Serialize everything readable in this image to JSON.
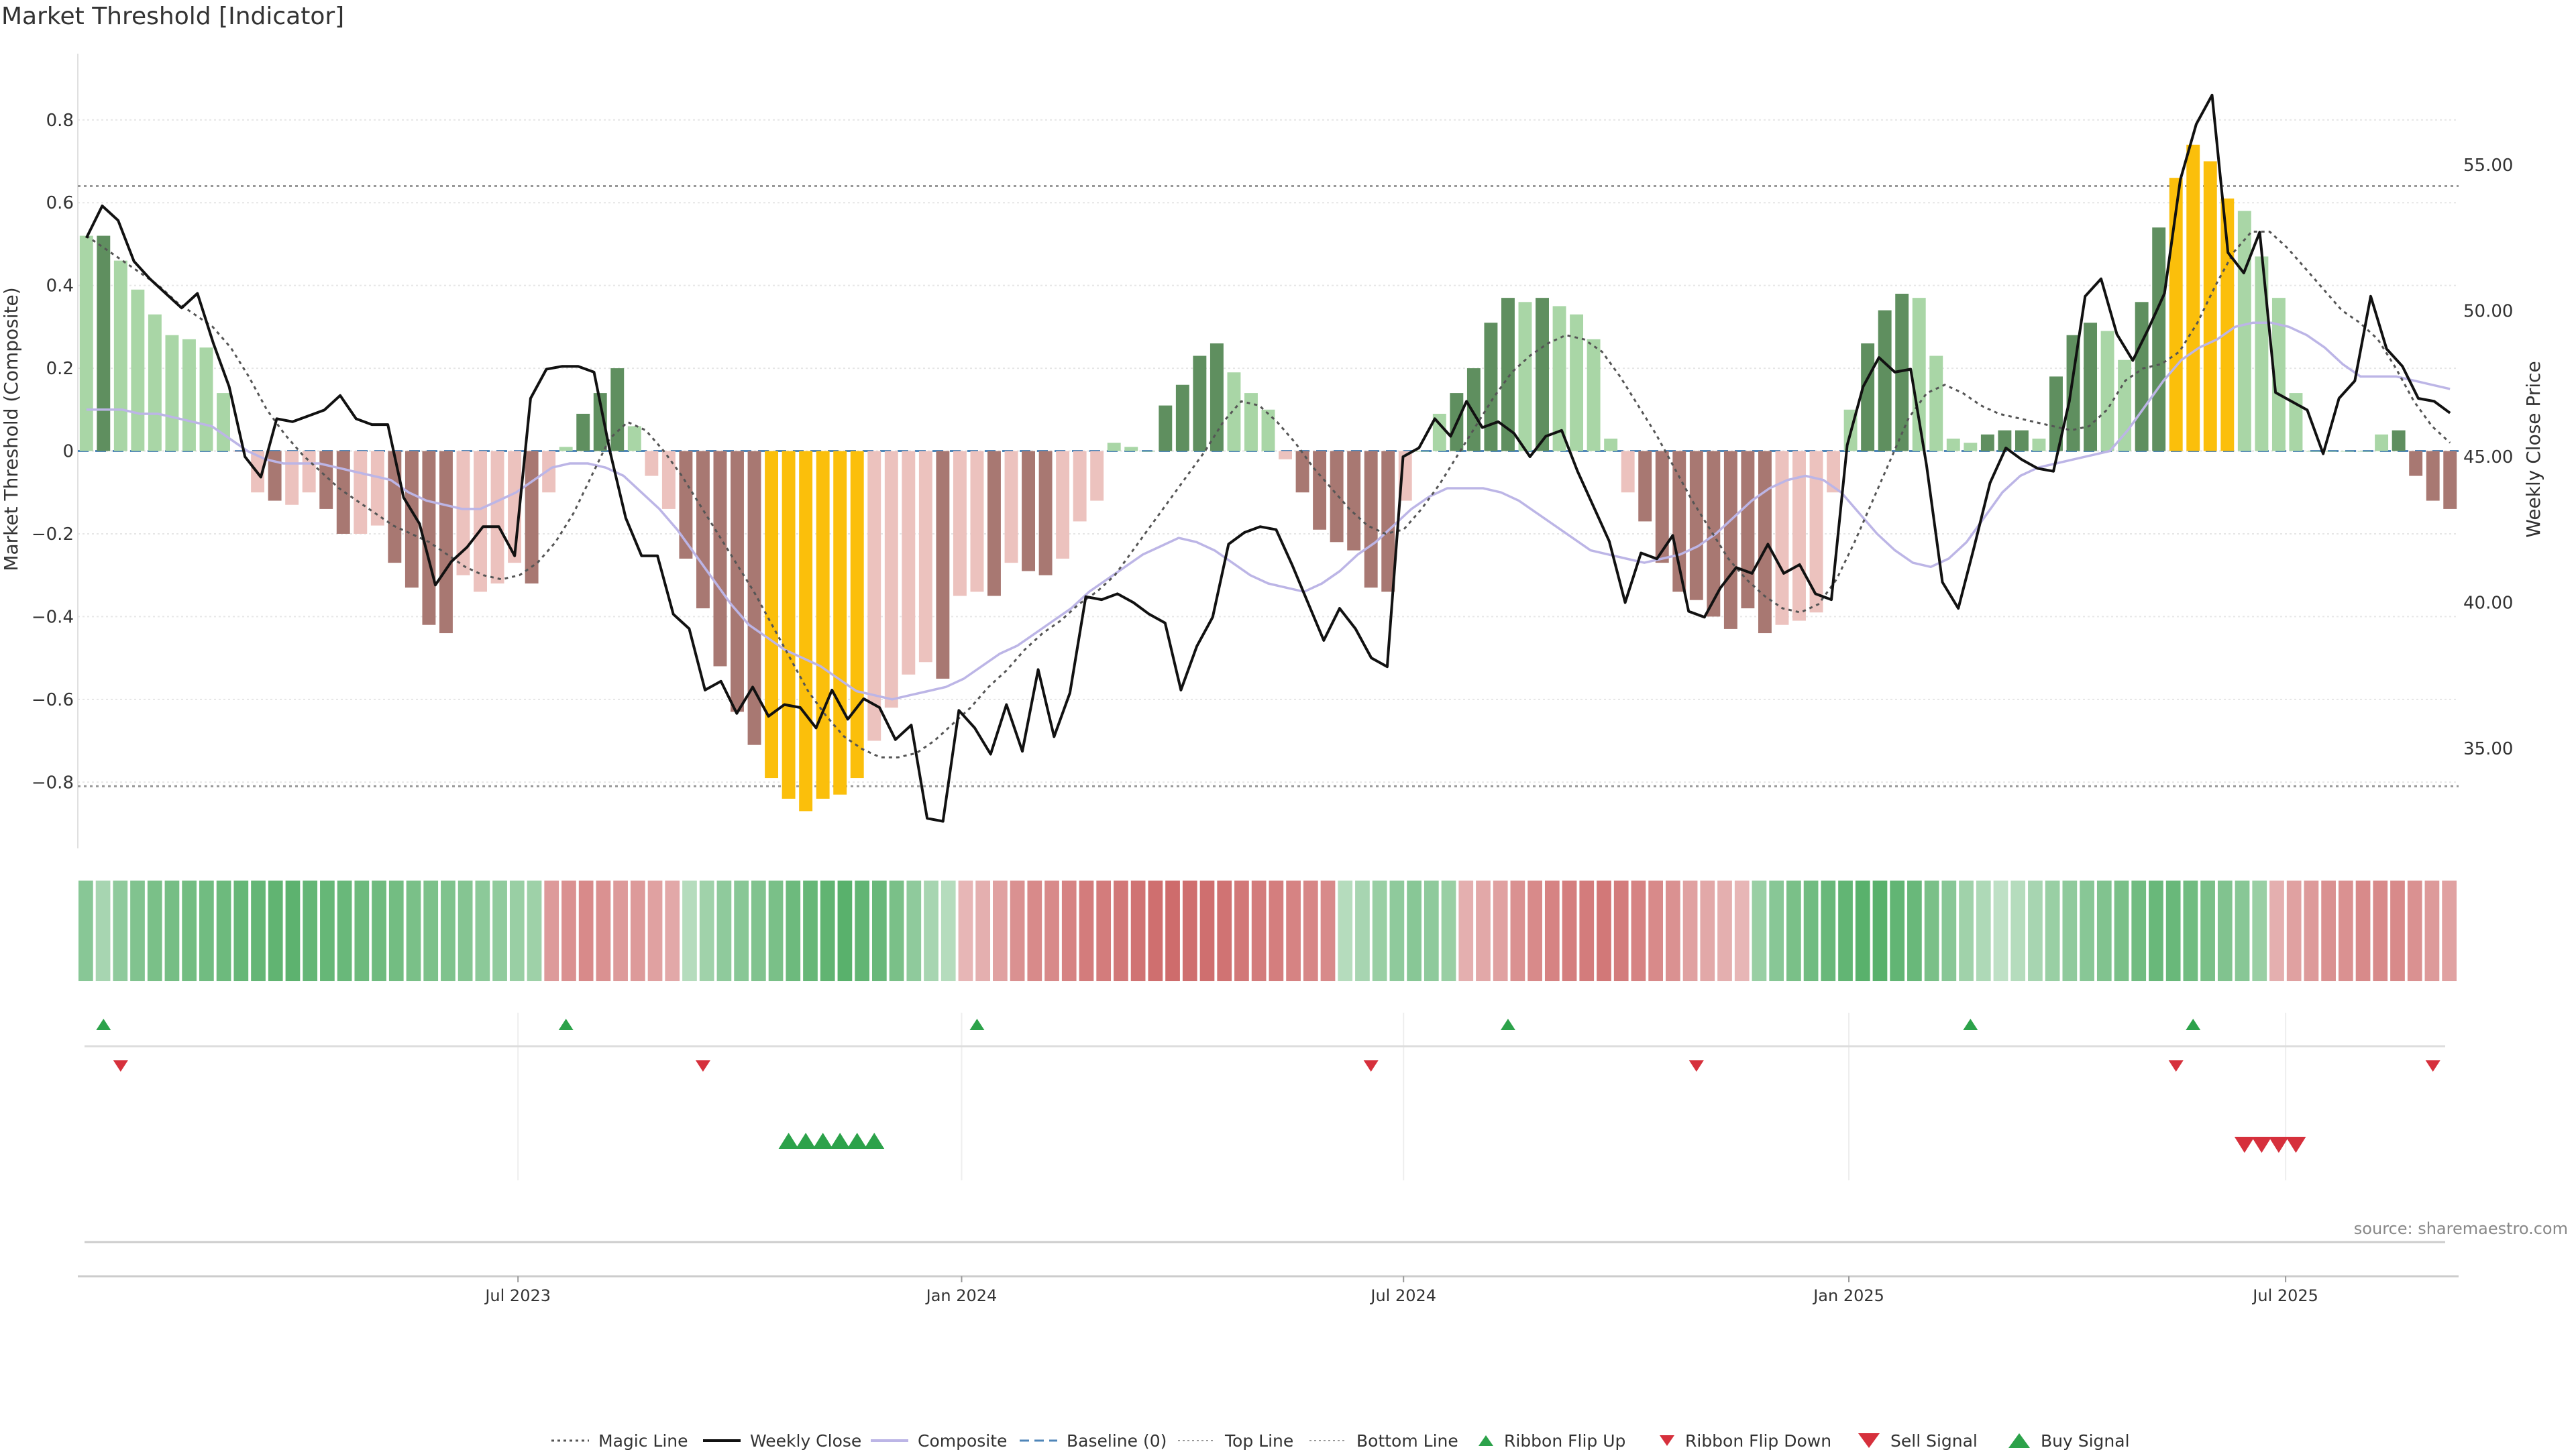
{
  "title": "Market Threshold [Indicator]",
  "source": "source: sharemaestro.com",
  "colors": {
    "bar_pos_strong": "#5f8f5f",
    "bar_pos_weak": "#a9d6a6",
    "bar_neg_strong": "#a87872",
    "bar_neg_weak": "#ecc2be",
    "bar_extreme": "#fbbf0b",
    "weekly_close": "#111111",
    "composite": "#bcb5e6",
    "magic": "#555555",
    "baseline": "#4f86b8",
    "threshold": "#999999",
    "buy": "#2ca24a",
    "sell": "#d6303c"
  },
  "legend": [
    {
      "label": "Magic Line",
      "kind": "dotted-line"
    },
    {
      "label": "Weekly Close",
      "kind": "solid-line"
    },
    {
      "label": "Composite",
      "kind": "composite-line"
    },
    {
      "label": "Baseline (0)",
      "kind": "dashed-line"
    },
    {
      "label": "Top Line",
      "kind": "fine-dotted-line"
    },
    {
      "label": "Bottom Line",
      "kind": "fine-dotted-line"
    },
    {
      "label": "Ribbon Flip Up",
      "kind": "small-up-triangle"
    },
    {
      "label": "Ribbon Flip Down",
      "kind": "small-down-triangle"
    },
    {
      "label": "Sell Signal",
      "kind": "big-down-triangle"
    },
    {
      "label": "Buy Signal",
      "kind": "big-up-triangle"
    }
  ],
  "chart_data": {
    "type": "bar",
    "title": "Market Threshold [Indicator]",
    "ylabel": "Market Threshold (Composite)",
    "y2label": "Weekly Close Price",
    "ylim": [
      -0.96,
      0.96
    ],
    "y2lim": [
      31.57,
      58.82
    ],
    "yticks": [
      -0.8,
      -0.6,
      -0.4,
      -0.2,
      0,
      0.2,
      0.4,
      0.6,
      0.8
    ],
    "ytick_labels": [
      "−0.8",
      "−0.6",
      "−0.4",
      "−0.2",
      "0",
      "0.2",
      "0.4",
      "0.6",
      "0.8"
    ],
    "y2ticks": [
      35,
      40,
      45,
      50,
      55
    ],
    "y2tick_labels": [
      "35.00",
      "40.00",
      "45.00",
      "50.00",
      "55.00"
    ],
    "xticks": [
      25.7,
      51.6,
      77.4,
      103.4,
      128.9
    ],
    "xtick_labels": [
      "Jul 2023",
      "Jan 2024",
      "Jul 2024",
      "Jan 2025",
      "Jul 2025"
    ],
    "top_line": 0.64,
    "bottom_line": -0.81,
    "baseline": 0,
    "composite": [
      0.52,
      0.52,
      0.46,
      0.39,
      0.33,
      0.28,
      0.27,
      0.25,
      0.14,
      0.0,
      -0.1,
      -0.12,
      -0.13,
      -0.1,
      -0.14,
      -0.2,
      -0.2,
      -0.18,
      -0.27,
      -0.33,
      -0.42,
      -0.44,
      -0.3,
      -0.34,
      -0.32,
      -0.27,
      -0.32,
      -0.1,
      0.01,
      0.09,
      0.14,
      0.2,
      0.06,
      -0.06,
      -0.14,
      -0.26,
      -0.38,
      -0.52,
      -0.63,
      -0.71,
      -0.79,
      -0.84,
      -0.87,
      -0.84,
      -0.83,
      -0.79,
      -0.7,
      -0.62,
      -0.54,
      -0.51,
      -0.55,
      -0.35,
      -0.34,
      -0.35,
      -0.27,
      -0.29,
      -0.3,
      -0.26,
      -0.17,
      -0.12,
      0.02,
      0.01,
      0.0,
      0.11,
      0.16,
      0.23,
      0.26,
      0.19,
      0.14,
      0.1,
      -0.02,
      -0.1,
      -0.19,
      -0.22,
      -0.24,
      -0.33,
      -0.34,
      -0.12,
      0.0,
      0.09,
      0.14,
      0.2,
      0.31,
      0.37,
      0.36,
      0.37,
      0.35,
      0.33,
      0.27,
      0.03,
      -0.1,
      -0.17,
      -0.27,
      -0.34,
      -0.36,
      -0.4,
      -0.43,
      -0.38,
      -0.44,
      -0.42,
      -0.41,
      -0.39,
      -0.1,
      0.1,
      0.26,
      0.34,
      0.38,
      0.37,
      0.23,
      0.03,
      0.02,
      0.04,
      0.05,
      0.05,
      0.03,
      0.18,
      0.28,
      0.31,
      0.29,
      0.22,
      0.36,
      0.54,
      0.66,
      0.74,
      0.7,
      0.61,
      0.58,
      0.47,
      0.37,
      0.14,
      0.0,
      0.0,
      0.0,
      0.0,
      0.04,
      0.05,
      -0.06,
      -0.12,
      -0.14
    ],
    "bar_color_class": [
      "pw",
      "ps",
      "pw",
      "pw",
      "pw",
      "pw",
      "pw",
      "pw",
      "pw",
      "nw",
      "nw",
      "ns",
      "nw",
      "nw",
      "ns",
      "ns",
      "nw",
      "nw",
      "ns",
      "ns",
      "ns",
      "ns",
      "nw",
      "nw",
      "nw",
      "nw",
      "ns",
      "nw",
      "pw",
      "ps",
      "ps",
      "ps",
      "pw",
      "nw",
      "nw",
      "ns",
      "ns",
      "ns",
      "ns",
      "ns",
      "ex",
      "ex",
      "ex",
      "ex",
      "ex",
      "ex",
      "nw",
      "nw",
      "nw",
      "nw",
      "ns",
      "nw",
      "nw",
      "ns",
      "nw",
      "ns",
      "ns",
      "nw",
      "nw",
      "nw",
      "pw",
      "pw",
      "pw",
      "ps",
      "ps",
      "ps",
      "ps",
      "pw",
      "pw",
      "pw",
      "nw",
      "ns",
      "ns",
      "ns",
      "ns",
      "ns",
      "ns",
      "nw",
      "pw",
      "pw",
      "ps",
      "ps",
      "ps",
      "ps",
      "pw",
      "ps",
      "pw",
      "pw",
      "pw",
      "pw",
      "nw",
      "ns",
      "ns",
      "ns",
      "ns",
      "ns",
      "ns",
      "ns",
      "ns",
      "nw",
      "nw",
      "nw",
      "nw",
      "pw",
      "ps",
      "ps",
      "ps",
      "pw",
      "pw",
      "pw",
      "pw",
      "ps",
      "ps",
      "ps",
      "pw",
      "ps",
      "ps",
      "ps",
      "pw",
      "pw",
      "ps",
      "ps",
      "ex",
      "ex",
      "ex",
      "ex",
      "pw",
      "pw",
      "pw",
      "pw",
      "pw",
      "pw",
      "pw",
      "pw",
      "pw",
      "ps",
      "ns",
      "ns",
      "ns"
    ],
    "weekly_close": [
      52.5,
      53.6,
      53.1,
      51.7,
      51.1,
      50.6,
      50.1,
      50.6,
      48.9,
      47.4,
      45.0,
      44.3,
      46.3,
      46.2,
      46.4,
      46.6,
      47.1,
      46.3,
      46.1,
      46.1,
      43.6,
      42.7,
      40.6,
      41.4,
      41.9,
      42.6,
      42.6,
      41.6,
      47.0,
      48.0,
      48.1,
      48.1,
      47.9,
      45.2,
      42.9,
      41.6,
      41.6,
      39.6,
      39.1,
      37.0,
      37.3,
      36.2,
      37.1,
      36.1,
      36.5,
      36.4,
      35.7,
      37.0,
      36.0,
      36.7,
      36.4,
      35.3,
      35.8,
      32.6,
      32.5,
      36.3,
      35.7,
      34.8,
      36.5,
      34.9,
      37.7,
      35.4,
      36.9,
      40.2,
      40.1,
      40.3,
      40.0,
      39.6,
      39.3,
      37.0,
      38.5,
      39.5,
      42.0,
      42.4,
      42.6,
      42.5,
      41.3,
      40.0,
      38.7,
      39.8,
      39.1,
      38.1,
      37.8,
      45.0,
      45.3,
      46.3,
      45.7,
      46.9,
      46.0,
      46.2,
      45.8,
      45.0,
      45.7,
      45.9,
      44.5,
      43.3,
      42.1,
      40.0,
      41.7,
      41.5,
      42.3,
      39.7,
      39.5,
      40.5,
      41.2,
      41.0,
      42.0,
      41.0,
      41.3,
      40.3,
      40.1,
      45.4,
      47.4,
      48.4,
      47.9,
      48.0,
      44.7,
      40.7,
      39.8,
      41.9,
      44.1,
      45.3,
      44.9,
      44.6,
      44.5,
      46.9,
      50.5,
      51.1,
      49.2,
      48.3,
      49.4,
      50.6,
      54.5,
      56.4,
      57.4,
      52.0,
      51.3,
      52.7,
      47.2,
      46.9,
      46.6,
      45.1,
      47.0,
      47.6,
      50.5,
      48.7,
      48.1,
      47.0,
      46.9,
      46.5
    ],
    "composite_line": [
      0.1,
      0.1,
      0.1,
      0.09,
      0.09,
      0.08,
      0.07,
      0.06,
      0.03,
      0.0,
      -0.02,
      -0.03,
      -0.03,
      -0.03,
      -0.04,
      -0.05,
      -0.06,
      -0.07,
      -0.1,
      -0.12,
      -0.13,
      -0.14,
      -0.14,
      -0.12,
      -0.1,
      -0.07,
      -0.04,
      -0.03,
      -0.03,
      -0.04,
      -0.06,
      -0.1,
      -0.14,
      -0.19,
      -0.25,
      -0.31,
      -0.37,
      -0.42,
      -0.45,
      -0.48,
      -0.5,
      -0.52,
      -0.55,
      -0.58,
      -0.59,
      -0.6,
      -0.59,
      -0.58,
      -0.57,
      -0.55,
      -0.52,
      -0.49,
      -0.47,
      -0.44,
      -0.41,
      -0.38,
      -0.34,
      -0.31,
      -0.28,
      -0.25,
      -0.23,
      -0.21,
      -0.22,
      -0.24,
      -0.27,
      -0.3,
      -0.32,
      -0.33,
      -0.34,
      -0.32,
      -0.29,
      -0.25,
      -0.22,
      -0.18,
      -0.14,
      -0.11,
      -0.09,
      -0.09,
      -0.09,
      -0.1,
      -0.12,
      -0.15,
      -0.18,
      -0.21,
      -0.24,
      -0.25,
      -0.26,
      -0.27,
      -0.26,
      -0.25,
      -0.23,
      -0.2,
      -0.16,
      -0.12,
      -0.09,
      -0.07,
      -0.06,
      -0.07,
      -0.1,
      -0.15,
      -0.2,
      -0.24,
      -0.27,
      -0.28,
      -0.26,
      -0.22,
      -0.16,
      -0.1,
      -0.06,
      -0.04,
      -0.03,
      -0.02,
      -0.01,
      0.0,
      0.05,
      0.11,
      0.17,
      0.22,
      0.25,
      0.27,
      0.3,
      0.31,
      0.31,
      0.3,
      0.28,
      0.25,
      0.21,
      0.18,
      0.18,
      0.18,
      0.17,
      0.16,
      0.15
    ],
    "magic_line": [
      0.52,
      0.49,
      0.46,
      0.43,
      0.4,
      0.36,
      0.33,
      0.3,
      0.25,
      0.18,
      0.1,
      0.04,
      -0.01,
      -0.05,
      -0.09,
      -0.12,
      -0.15,
      -0.18,
      -0.2,
      -0.22,
      -0.25,
      -0.28,
      -0.3,
      -0.31,
      -0.3,
      -0.27,
      -0.22,
      -0.15,
      -0.06,
      0.03,
      0.07,
      0.05,
      0.0,
      -0.06,
      -0.13,
      -0.2,
      -0.27,
      -0.34,
      -0.42,
      -0.5,
      -0.58,
      -0.64,
      -0.69,
      -0.72,
      -0.74,
      -0.74,
      -0.73,
      -0.7,
      -0.66,
      -0.62,
      -0.57,
      -0.53,
      -0.48,
      -0.44,
      -0.41,
      -0.37,
      -0.34,
      -0.3,
      -0.24,
      -0.18,
      -0.12,
      -0.06,
      0.0,
      0.07,
      0.12,
      0.11,
      0.07,
      0.02,
      -0.04,
      -0.09,
      -0.14,
      -0.18,
      -0.2,
      -0.19,
      -0.14,
      -0.08,
      -0.01,
      0.06,
      0.13,
      0.19,
      0.23,
      0.26,
      0.28,
      0.27,
      0.24,
      0.18,
      0.11,
      0.04,
      -0.04,
      -0.12,
      -0.19,
      -0.26,
      -0.31,
      -0.35,
      -0.38,
      -0.39,
      -0.37,
      -0.31,
      -0.22,
      -0.12,
      -0.02,
      0.08,
      0.14,
      0.16,
      0.14,
      0.11,
      0.09,
      0.08,
      0.07,
      0.06,
      0.05,
      0.06,
      0.1,
      0.17,
      0.2,
      0.21,
      0.24,
      0.31,
      0.4,
      0.48,
      0.53,
      0.53,
      0.49,
      0.44,
      0.39,
      0.34,
      0.31,
      0.27,
      0.2,
      0.12,
      0.06,
      0.02
    ],
    "magic_start_index": 0,
    "ribbon": [
      0.6,
      0.4,
      0.55,
      0.65,
      0.7,
      0.72,
      0.74,
      0.75,
      0.78,
      0.82,
      0.84,
      0.86,
      0.88,
      0.84,
      0.82,
      0.8,
      0.78,
      0.76,
      0.74,
      0.7,
      0.68,
      0.66,
      0.62,
      0.58,
      0.54,
      0.5,
      0.46,
      -0.5,
      -0.55,
      -0.6,
      -0.55,
      -0.5,
      -0.5,
      -0.45,
      -0.4,
      0.3,
      0.45,
      0.55,
      0.6,
      0.65,
      0.7,
      0.78,
      0.82,
      0.86,
      0.9,
      0.85,
      0.8,
      0.7,
      0.55,
      0.4,
      0.3,
      -0.3,
      -0.35,
      -0.45,
      -0.55,
      -0.6,
      -0.6,
      -0.65,
      -0.7,
      -0.7,
      -0.72,
      -0.75,
      -0.78,
      -0.8,
      -0.78,
      -0.78,
      -0.75,
      -0.72,
      -0.7,
      -0.68,
      -0.65,
      -0.62,
      -0.6,
      0.3,
      0.4,
      0.5,
      0.55,
      0.6,
      0.55,
      0.5,
      -0.35,
      -0.4,
      -0.45,
      -0.55,
      -0.6,
      -0.65,
      -0.68,
      -0.7,
      -0.72,
      -0.7,
      -0.65,
      -0.6,
      -0.55,
      -0.45,
      -0.4,
      -0.35,
      -0.3,
      0.5,
      0.6,
      0.7,
      0.75,
      0.8,
      0.85,
      0.9,
      0.9,
      0.85,
      0.8,
      0.7,
      0.6,
      0.45,
      0.35,
      0.25,
      0.3,
      0.4,
      0.5,
      0.55,
      0.6,
      0.65,
      0.7,
      0.75,
      0.8,
      0.8,
      0.75,
      0.7,
      0.65,
      0.6,
      0.5,
      -0.35,
      -0.45,
      -0.5,
      -0.55,
      -0.55,
      -0.6,
      -0.6,
      -0.6,
      -0.55,
      -0.5,
      -0.45
    ],
    "ribbon_flip_up": [
      1,
      28,
      52,
      83,
      110,
      123
    ],
    "ribbon_flip_down": [
      2,
      36,
      75,
      94,
      122,
      137
    ],
    "buy_signal": [
      41,
      42,
      43,
      44,
      45,
      46
    ],
    "sell_signal": [
      126,
      127,
      128,
      129
    ]
  }
}
